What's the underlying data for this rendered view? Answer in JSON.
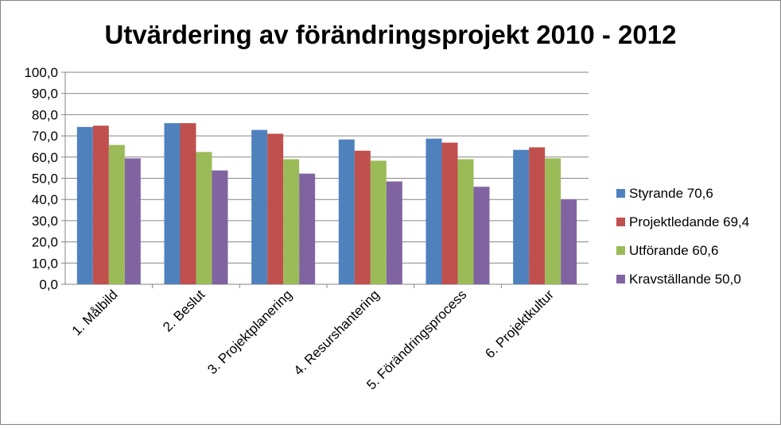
{
  "chart_data": {
    "type": "bar",
    "title": "Utvärdering av förändringsprojekt 2010 - 2012",
    "xlabel": "",
    "ylabel": "",
    "ylim": [
      0,
      100
    ],
    "ytick_step": 10,
    "ytick_labels": [
      "0,0",
      "10,0",
      "20,0",
      "30,0",
      "40,0",
      "50,0",
      "60,0",
      "70,0",
      "80,0",
      "90,0",
      "100,0"
    ],
    "grid": true,
    "legend_position": "right",
    "categories": [
      "1. Målbild",
      "2. Beslut",
      "3. Projektplanering",
      "4. Resurshantering",
      "5. Förändringsprocess",
      "6. Projektkultur"
    ],
    "series": [
      {
        "name": "Styrande 70,6",
        "color": "#4F81BD",
        "values": [
          74.2,
          76.0,
          72.8,
          68.3,
          68.7,
          63.4
        ]
      },
      {
        "name": "Projektledande 69,4",
        "color": "#C0504D",
        "values": [
          74.8,
          76.0,
          71.0,
          63.0,
          66.8,
          64.6
        ]
      },
      {
        "name": "Utförande 60,6",
        "color": "#9BBB59",
        "values": [
          65.7,
          62.4,
          59.0,
          58.3,
          59.0,
          59.4
        ]
      },
      {
        "name": "Kravställande 50,0",
        "color": "#8064A2",
        "values": [
          59.4,
          53.7,
          52.2,
          48.5,
          46.0,
          40.0
        ]
      }
    ]
  }
}
